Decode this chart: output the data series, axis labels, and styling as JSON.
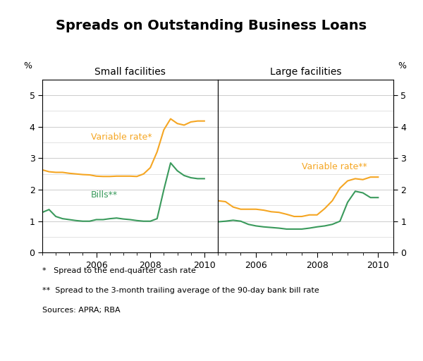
{
  "title": "Spreads on Outstanding Business Loans",
  "left_panel_title": "Small facilities",
  "right_panel_title": "Large facilities",
  "ylabel_pct": "%",
  "ylim": [
    0,
    5.5
  ],
  "yticks": [
    0,
    1,
    2,
    3,
    4,
    5
  ],
  "footnote1": "*   Spread to the end-quarter cash rate",
  "footnote2": "**  Spread to the 3-month trailing average of the 90-day bank bill rate",
  "footnote3": "Sources: APRA; RBA",
  "orange_color": "#F5A623",
  "green_color": "#3A9A5C",
  "left_variable_rate_label": "Variable rate*",
  "left_bills_label": "Bills**",
  "right_variable_rate_label": "Variable rate**",
  "left_var_x": [
    2004.0,
    2004.25,
    2004.5,
    2004.75,
    2005.0,
    2005.25,
    2005.5,
    2005.75,
    2006.0,
    2006.25,
    2006.5,
    2006.75,
    2007.0,
    2007.25,
    2007.5,
    2007.75,
    2008.0,
    2008.25,
    2008.5,
    2008.75,
    2009.0,
    2009.25,
    2009.5,
    2009.75,
    2010.0
  ],
  "left_var_y": [
    2.63,
    2.57,
    2.55,
    2.55,
    2.52,
    2.5,
    2.48,
    2.47,
    2.43,
    2.42,
    2.42,
    2.43,
    2.43,
    2.43,
    2.42,
    2.5,
    2.7,
    3.2,
    3.9,
    4.25,
    4.1,
    4.05,
    4.15,
    4.18,
    4.18
  ],
  "left_bills_x": [
    2004.0,
    2004.25,
    2004.5,
    2004.75,
    2005.0,
    2005.25,
    2005.5,
    2005.75,
    2006.0,
    2006.25,
    2006.5,
    2006.75,
    2007.0,
    2007.25,
    2007.5,
    2007.75,
    2008.0,
    2008.25,
    2008.5,
    2008.75,
    2009.0,
    2009.25,
    2009.5,
    2009.75,
    2010.0
  ],
  "left_bills_y": [
    1.28,
    1.37,
    1.15,
    1.08,
    1.05,
    1.02,
    1.0,
    1.0,
    1.05,
    1.05,
    1.08,
    1.1,
    1.07,
    1.05,
    1.02,
    1.0,
    1.0,
    1.08,
    2.0,
    2.85,
    2.6,
    2.45,
    2.38,
    2.35,
    2.35
  ],
  "right_var_x": [
    2004.75,
    2005.0,
    2005.25,
    2005.5,
    2005.75,
    2006.0,
    2006.25,
    2006.5,
    2006.75,
    2007.0,
    2007.25,
    2007.5,
    2007.75,
    2008.0,
    2008.25,
    2008.5,
    2008.75,
    2009.0,
    2009.25,
    2009.5,
    2009.75,
    2010.0
  ],
  "right_var_y": [
    1.65,
    1.62,
    1.45,
    1.38,
    1.38,
    1.38,
    1.35,
    1.3,
    1.28,
    1.22,
    1.15,
    1.15,
    1.2,
    1.2,
    1.4,
    1.65,
    2.05,
    2.28,
    2.35,
    2.32,
    2.4,
    2.4
  ],
  "right_bills_x": [
    2004.75,
    2005.0,
    2005.25,
    2005.5,
    2005.75,
    2006.0,
    2006.25,
    2006.5,
    2006.75,
    2007.0,
    2007.25,
    2007.5,
    2007.75,
    2008.0,
    2008.25,
    2008.5,
    2008.75,
    2009.0,
    2009.25,
    2009.5,
    2009.75,
    2010.0
  ],
  "right_bills_y": [
    0.98,
    1.0,
    1.03,
    1.0,
    0.9,
    0.85,
    0.82,
    0.8,
    0.78,
    0.75,
    0.75,
    0.75,
    0.78,
    0.82,
    0.85,
    0.9,
    1.0,
    1.6,
    1.95,
    1.9,
    1.75,
    1.75
  ],
  "xlim_left": [
    2004.0,
    2010.5
  ],
  "xlim_right": [
    2004.75,
    2010.5
  ],
  "xticks_left": [
    2006,
    2008,
    2010
  ],
  "xticks_right": [
    2006,
    2008,
    2010
  ],
  "grid_color": "#cccccc",
  "background_color": "#ffffff"
}
